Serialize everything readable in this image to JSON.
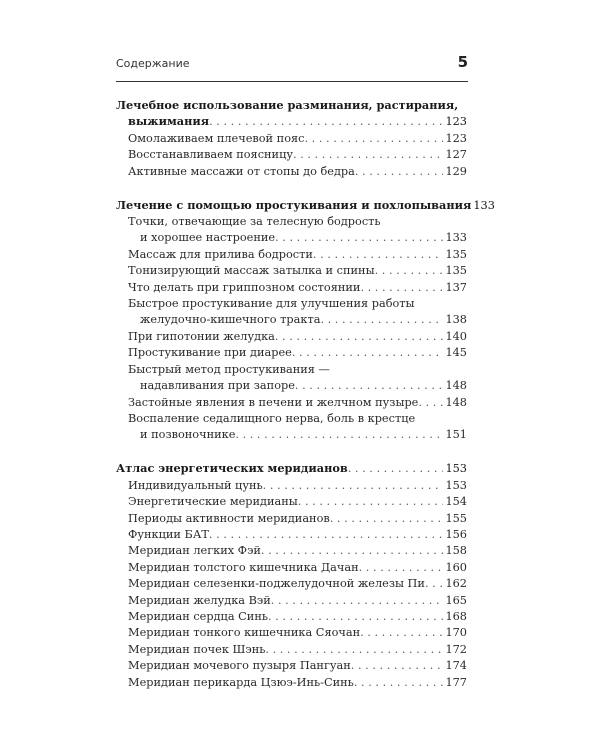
{
  "header": {
    "title": "Содержание",
    "page_number": "5"
  },
  "sections": [
    {
      "heading": {
        "lines": [
          "Лечебное использование разминания, растирания,",
          "выжимания"
        ],
        "page": "123"
      },
      "items": [
        {
          "lines": [
            "Омолаживаем плечевой пояс"
          ],
          "page": "123"
        },
        {
          "lines": [
            "Восстанавливаем поясницу"
          ],
          "page": "127"
        },
        {
          "lines": [
            "Активные массажи от стопы до бедра"
          ],
          "page": "129"
        }
      ]
    },
    {
      "heading": {
        "lines": [
          "Лечение с помощью простукивания и похлопывания"
        ],
        "page": "133"
      },
      "items": [
        {
          "lines": [
            "Точки, отвечающие за телесную бодрость",
            "и хорошее настроение"
          ],
          "page": "133"
        },
        {
          "lines": [
            "Массаж для прилива бодрости"
          ],
          "page": "135"
        },
        {
          "lines": [
            "Тонизирующий массаж затылка и спины"
          ],
          "page": "135"
        },
        {
          "lines": [
            "Что делать при гриппозном состоянии"
          ],
          "page": "137"
        },
        {
          "lines": [
            "Быстрое простукивание для улучшения работы",
            "желудочно-кишечного тракта"
          ],
          "page": "138"
        },
        {
          "lines": [
            "При гипотонии желудка"
          ],
          "page": "140"
        },
        {
          "lines": [
            "Простукивание при диарее"
          ],
          "page": "145"
        },
        {
          "lines": [
            "Быстрый метод простукивания —",
            "надавливания при запоре"
          ],
          "page": "148"
        },
        {
          "lines": [
            "Застойные явления в печени и желчном пузыре"
          ],
          "page": "148"
        },
        {
          "lines": [
            "Воспаление седалищного нерва, боль в крестце",
            "и позвоночнике"
          ],
          "page": "151"
        }
      ]
    },
    {
      "heading": {
        "lines": [
          "Атлас энергетических меридианов"
        ],
        "page": "153"
      },
      "items": [
        {
          "lines": [
            "Индивидуальный цунь"
          ],
          "page": "153"
        },
        {
          "lines": [
            "Энергетические меридианы"
          ],
          "page": "154"
        },
        {
          "lines": [
            "Периоды активности меридианов"
          ],
          "page": "155"
        },
        {
          "lines": [
            "Функции БАТ"
          ],
          "page": "156"
        },
        {
          "lines": [
            "Меридиан легких Фэй"
          ],
          "page": "158"
        },
        {
          "lines": [
            "Меридиан толстого кишечника Дачан"
          ],
          "page": "160"
        },
        {
          "lines": [
            "Меридиан селезенки-поджелудочной железы Пи"
          ],
          "page": "162"
        },
        {
          "lines": [
            "Меридиан желудка Вэй"
          ],
          "page": "165"
        },
        {
          "lines": [
            "Меридиан сердца Синь"
          ],
          "page": "168"
        },
        {
          "lines": [
            "Меридиан тонкого кишечника Сяочан"
          ],
          "page": "170"
        },
        {
          "lines": [
            "Меридиан почек Шэнь"
          ],
          "page": "172"
        },
        {
          "lines": [
            "Меридиан мочевого пузыря Пангуан"
          ],
          "page": "174"
        },
        {
          "lines": [
            "Меридиан перикарда Цзюэ-Инь-Синь"
          ],
          "page": "177"
        }
      ]
    }
  ]
}
